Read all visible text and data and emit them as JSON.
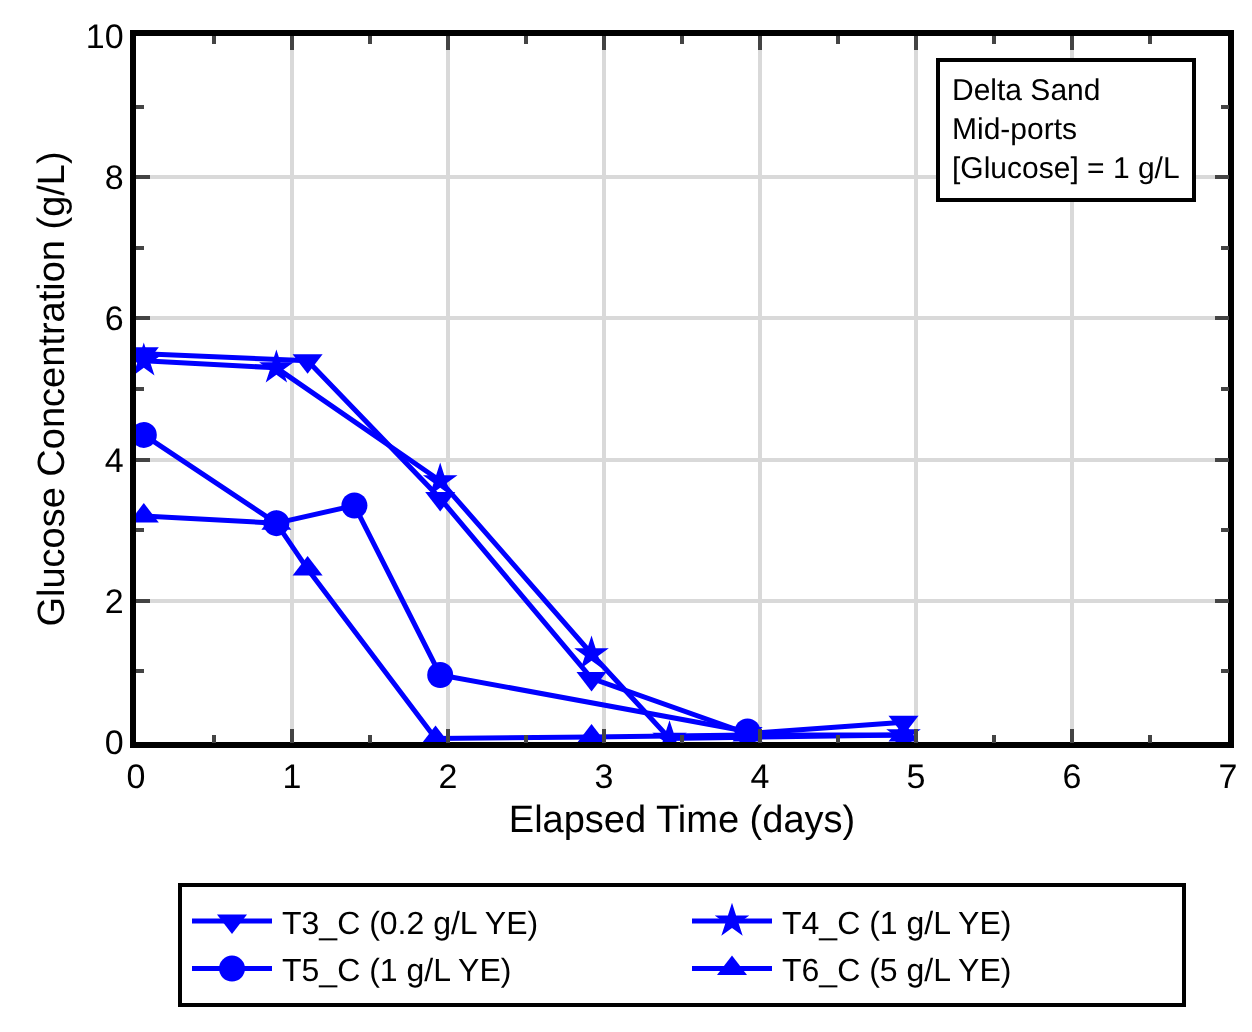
{
  "chart_data": {
    "type": "line",
    "xlabel": "Elapsed Time (days)",
    "ylabel": "Glucose Concentration (g/L)",
    "xlim": [
      0,
      7
    ],
    "xticks": [
      0,
      1,
      2,
      3,
      4,
      5,
      6,
      7
    ],
    "ylim": [
      0,
      10
    ],
    "yticks": [
      0,
      2,
      4,
      6,
      8,
      10
    ],
    "grid": true,
    "legend": "bottom",
    "annotations": [
      "Delta Sand\nMid-ports\n[Glucose] = 1 g/L"
    ],
    "series": [
      {
        "name": "T3_C (0.2 g/L YE)",
        "color": "#0000ff",
        "marker": "triangle-down",
        "x": [
          0.05,
          1.1,
          1.95,
          2.92,
          3.92,
          4.92
        ],
        "values": [
          5.5,
          5.4,
          3.45,
          0.9,
          0.12,
          0.28
        ]
      },
      {
        "name": "T4_C (1 g/L YE)",
        "color": "#0000ff",
        "marker": "star",
        "x": [
          0.05,
          0.9,
          1.95,
          2.92,
          3.42,
          4.92
        ],
        "values": [
          5.4,
          5.3,
          3.7,
          1.25,
          0.05,
          0.1
        ]
      },
      {
        "name": "T5_C (1 g/L YE)",
        "color": "#0000ff",
        "marker": "circle",
        "x": [
          0.05,
          0.9,
          1.4,
          1.95,
          3.92
        ],
        "values": [
          4.35,
          3.1,
          3.35,
          0.95,
          0.15
        ]
      },
      {
        "name": "T6_C (5 g/L YE)",
        "color": "#0000ff",
        "marker": "triangle",
        "x": [
          0.05,
          0.9,
          1.1,
          1.92,
          2.92,
          3.92,
          4.92
        ],
        "values": [
          3.2,
          3.1,
          2.45,
          0.05,
          0.07,
          0.1,
          0.1
        ]
      }
    ]
  }
}
